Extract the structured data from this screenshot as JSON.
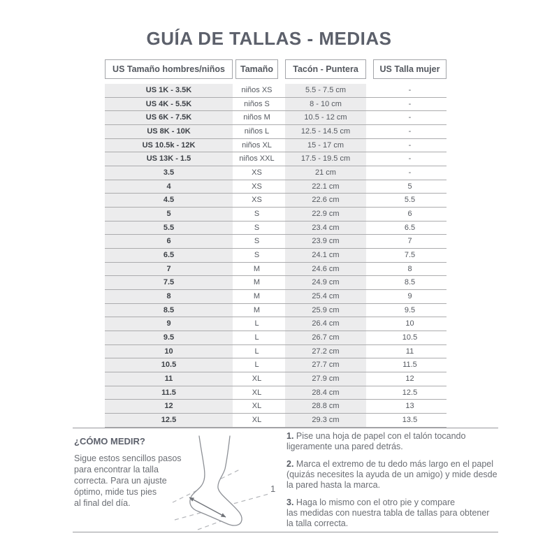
{
  "page": {
    "title": "GUÍA DE TALLAS - MEDIAS"
  },
  "table": {
    "headers": [
      "US Tamaño hombres/niños",
      "Tamaño",
      "Tacón - Puntera",
      "US Talla mujer"
    ],
    "rows": [
      [
        "US 1K - 3.5K",
        "niños XS",
        "5.5 - 7.5 cm",
        "-"
      ],
      [
        "US 4K - 5.5K",
        "niños S",
        "8 - 10 cm",
        "-"
      ],
      [
        "US 6K - 7.5K",
        "niños M",
        "10.5 - 12 cm",
        "-"
      ],
      [
        "US 8K - 10K",
        "niños L",
        "12.5 - 14.5 cm",
        "-"
      ],
      [
        "US 10.5k - 12K",
        "niños XL",
        "15 - 17 cm",
        "-"
      ],
      [
        "US 13K - 1.5",
        "niños XXL",
        "17.5 - 19.5 cm",
        "-"
      ],
      [
        "3.5",
        "XS",
        "21 cm",
        "-"
      ],
      [
        "4",
        "XS",
        "22.1 cm",
        "5"
      ],
      [
        "4.5",
        "XS",
        "22.6 cm",
        "5.5"
      ],
      [
        "5",
        "S",
        "22.9 cm",
        "6"
      ],
      [
        "5.5",
        "S",
        "23.4 cm",
        "6.5"
      ],
      [
        "6",
        "S",
        "23.9 cm",
        "7"
      ],
      [
        "6.5",
        "S",
        "24.1 cm",
        "7.5"
      ],
      [
        "7",
        "M",
        "24.6 cm",
        "8"
      ],
      [
        "7.5",
        "M",
        "24.9 cm",
        "8.5"
      ],
      [
        "8",
        "M",
        "25.4 cm",
        "9"
      ],
      [
        "8.5",
        "M",
        "25.9 cm",
        "9.5"
      ],
      [
        "9",
        "L",
        "26.4 cm",
        "10"
      ],
      [
        "9.5",
        "L",
        "26.7 cm",
        "10.5"
      ],
      [
        "10",
        "L",
        "27.2 cm",
        "11"
      ],
      [
        "10.5",
        "L",
        "27.7 cm",
        "11.5"
      ],
      [
        "11",
        "XL",
        "27.9 cm",
        "12"
      ],
      [
        "11.5",
        "XL",
        "28.4 cm",
        "12.5"
      ],
      [
        "12",
        "XL",
        "28.8 cm",
        "13"
      ],
      [
        "12.5",
        "XL",
        "29.3 cm",
        "13.5"
      ]
    ]
  },
  "how_to_measure": {
    "heading": "¿CÓMO MEDIR?",
    "intro": "Sigue estos sencillos pasos\npara encontrar la talla\ncorrecta. Para un ajuste\nóptimo, mide tus pies\nal final del día.",
    "diagram_label": "1",
    "steps": [
      {
        "number": "1.",
        "text": "Pise una hoja de papel con el talón tocando\nligeramente una pared detrás."
      },
      {
        "number": "2.",
        "text": "Marca el extremo de tu dedo más largo en el papel\n(quizás necesites la ayuda de un amigo) y mide desde\nla pared hasta la marca."
      },
      {
        "number": "3.",
        "text": "Haga lo mismo con el otro pie y compare\nlas medidas con nuestra tabla de tallas para obtener\nla talla correcta."
      }
    ]
  },
  "colors": {
    "title_text": "#5c606b",
    "table_text": "#54585f",
    "row_stripe_bg": "#ececed",
    "row_line": "#ababad",
    "section_divider": "#98999d",
    "body_text": "#6b6e74"
  }
}
